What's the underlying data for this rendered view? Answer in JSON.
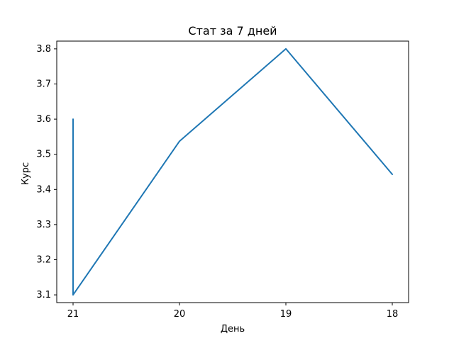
{
  "chart_data": {
    "type": "line",
    "title": "Стат за 7 дней",
    "xlabel": "День",
    "ylabel": "Курс",
    "categories": [
      "21",
      "20",
      "19",
      "18"
    ],
    "x_tick_labels": [
      "21",
      "20",
      "19",
      "18"
    ],
    "y_tick_labels": [
      "3.1",
      "3.2",
      "3.3",
      "3.4",
      "3.5",
      "3.6",
      "3.7",
      "3.8"
    ],
    "ylim": [
      3.078,
      3.822
    ],
    "grid": false,
    "legend": "none",
    "series": [
      {
        "name": "Курс",
        "color": "#1f77b4",
        "points": [
          {
            "x": 0,
            "y": 3.59
          },
          {
            "x": 0,
            "y": 3.52
          },
          {
            "x": 0,
            "y": 3.6
          },
          {
            "x": 0,
            "y": 3.53
          },
          {
            "x": 0,
            "y": 3.58
          },
          {
            "x": 0,
            "y": 3.1
          },
          {
            "x": 1,
            "y": 3.537
          },
          {
            "x": 2,
            "y": 3.8
          },
          {
            "x": 3,
            "y": 3.443
          }
        ]
      }
    ]
  }
}
